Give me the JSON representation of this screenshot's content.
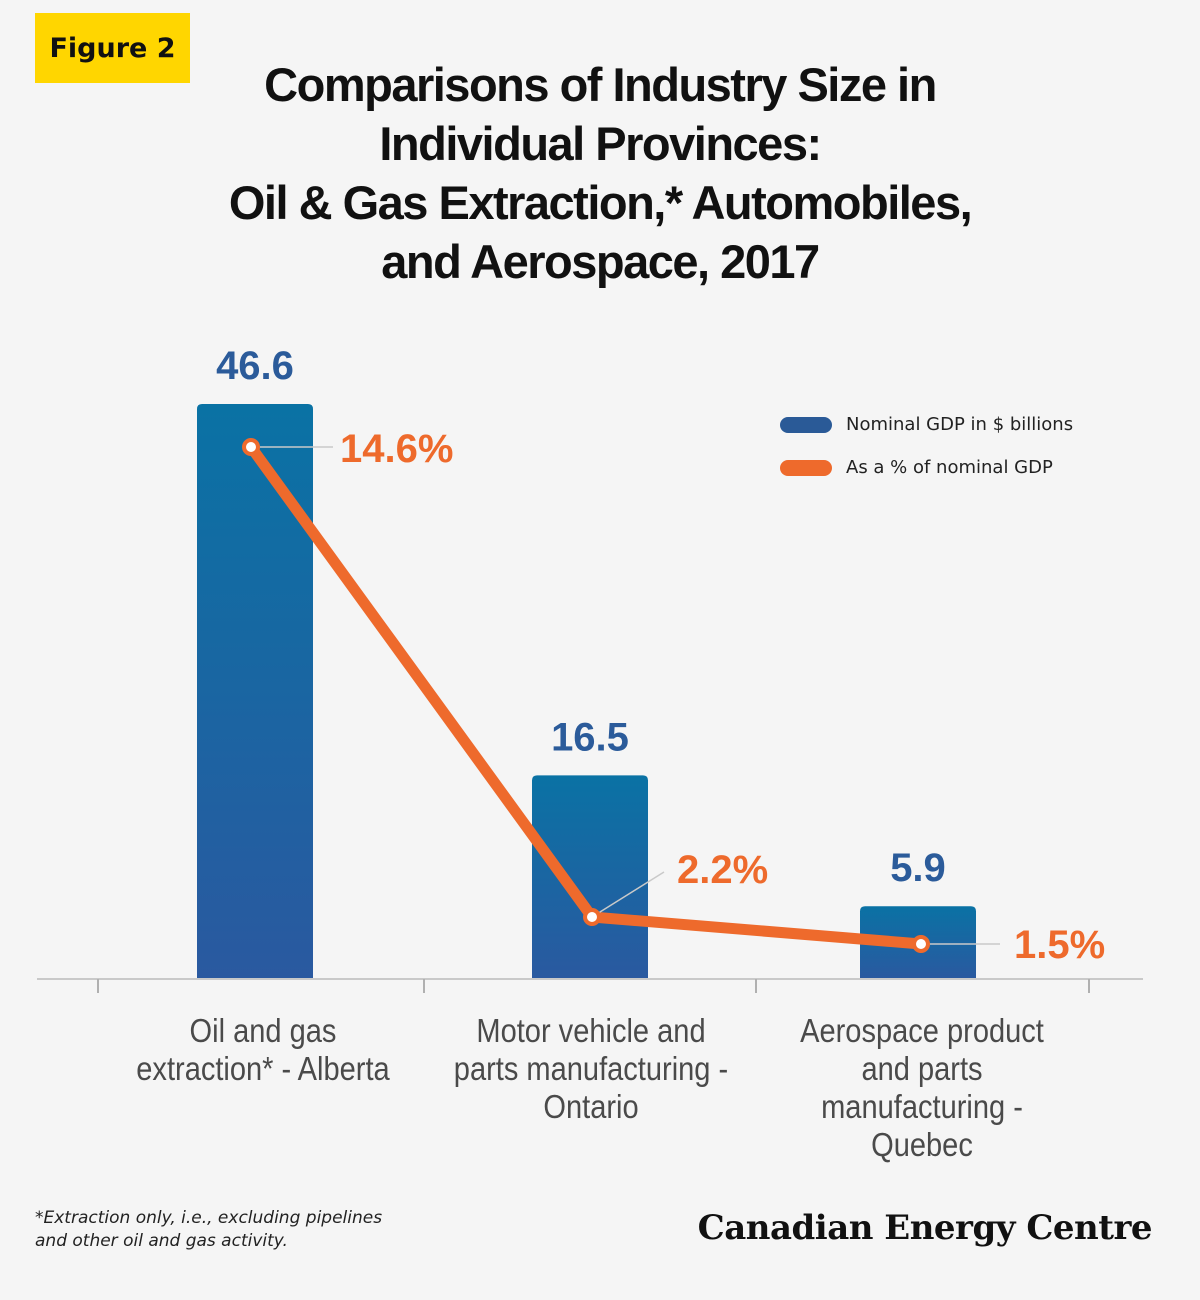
{
  "figure_label": "Figure 2",
  "title_lines": [
    "Comparisons of Industry Size in",
    "Individual Provinces:",
    "Oil & Gas Extraction,* Automobiles,",
    "and Aerospace, 2017"
  ],
  "legend": {
    "gdp_label": "Nominal GDP in $ billions",
    "pct_label": "As a % of nominal GDP"
  },
  "colors": {
    "bar": "#1a6ea3",
    "bar_label": "#2b5b9a",
    "line": "#ee6a2c",
    "legend_gdp": "#2a5a97"
  },
  "chart_data": {
    "type": "bar",
    "categories": [
      "Oil and gas extraction* - Alberta",
      "Motor vehicle and parts manufacturing - Ontario",
      "Aerospace product and parts manufacturing - Quebec"
    ],
    "series": [
      {
        "name": "Nominal GDP in $ billions",
        "type": "bar",
        "values": [
          46.6,
          16.5,
          5.9
        ],
        "labels": [
          "46.6",
          "16.5",
          "5.9"
        ]
      },
      {
        "name": "As a % of nominal GDP",
        "type": "line",
        "values": [
          14.6,
          2.2,
          1.5
        ],
        "labels": [
          "14.6%",
          "2.2%",
          "1.5%"
        ]
      }
    ],
    "ylim": [
      0,
      50
    ],
    "legend_position": "top-right"
  },
  "category_label_lines": [
    [
      "Oil and gas",
      "extraction* - Alberta"
    ],
    [
      "Motor vehicle and",
      "parts manufacturing -",
      "Ontario"
    ],
    [
      "Aerospace product",
      "and parts",
      "manufacturing - Quebec"
    ]
  ],
  "footnote_lines": [
    "*Extraction only, i.e., excluding pipelines",
    "and other oil and gas activity."
  ],
  "brand": "Canadian Energy Centre"
}
